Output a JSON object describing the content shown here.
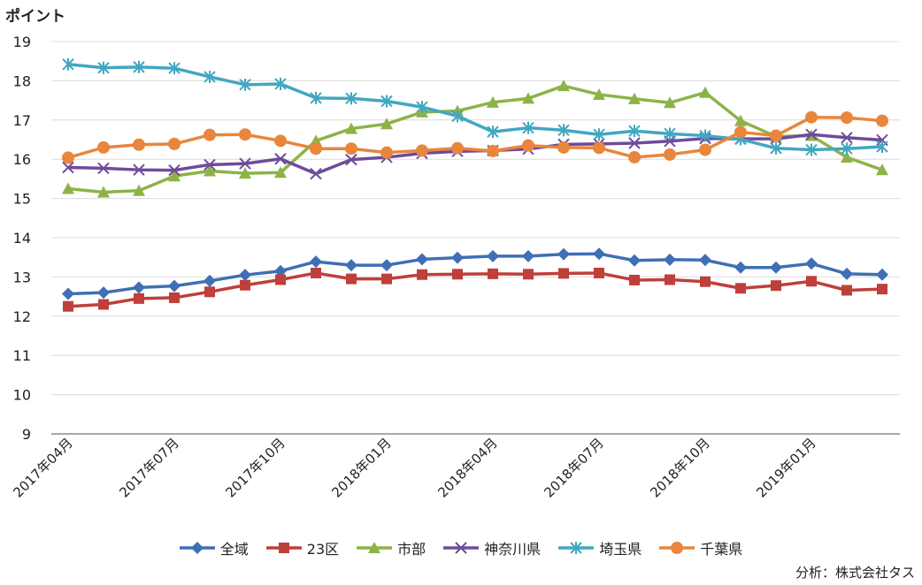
{
  "chart_data": {
    "type": "line",
    "y_unit_label": "ポイント",
    "source": "分析：株式会社タス",
    "ylim": [
      9,
      19
    ],
    "y_ticks": [
      9,
      10,
      11,
      12,
      13,
      14,
      15,
      16,
      17,
      18,
      19
    ],
    "x": [
      "2017年04月",
      "2017年05月",
      "2017年06月",
      "2017年07月",
      "2017年08月",
      "2017年09月",
      "2017年10月",
      "2017年11月",
      "2017年12月",
      "2018年01月",
      "2018年02月",
      "2018年03月",
      "2018年04月",
      "2018年05月",
      "2018年06月",
      "2018年07月",
      "2018年08月",
      "2018年09月",
      "2018年10月",
      "2018年11月",
      "2018年12月",
      "2019年01月",
      "2019年02月",
      "2019年03月"
    ],
    "x_tick_labels": [
      "2017年04月",
      "2017年07月",
      "2017年10月",
      "2018年01月",
      "2018年04月",
      "2018年07月",
      "2018年10月",
      "2019年01月"
    ],
    "x_tick_indices": [
      0,
      3,
      6,
      9,
      12,
      15,
      18,
      21
    ],
    "grid": true,
    "legend_position": "bottom",
    "series": [
      {
        "name": "全域",
        "color": "#3f6fb5",
        "marker": "diamond",
        "values": [
          12.57,
          12.6,
          12.73,
          12.77,
          12.9,
          13.05,
          13.15,
          13.39,
          13.3,
          13.3,
          13.45,
          13.49,
          13.53,
          13.53,
          13.58,
          13.59,
          13.42,
          13.44,
          13.43,
          13.24,
          13.24,
          13.34,
          13.08,
          13.06
        ]
      },
      {
        "name": "23区",
        "color": "#bf3f3b",
        "marker": "square",
        "values": [
          12.25,
          12.3,
          12.45,
          12.47,
          12.62,
          12.79,
          12.93,
          13.1,
          12.95,
          12.95,
          13.06,
          13.07,
          13.08,
          13.07,
          13.09,
          13.1,
          12.92,
          12.93,
          12.88,
          12.71,
          12.78,
          12.89,
          12.66,
          12.69
        ]
      },
      {
        "name": "市部",
        "color": "#8db347",
        "marker": "triangle",
        "values": [
          15.25,
          15.16,
          15.2,
          15.57,
          15.7,
          15.64,
          15.66,
          16.47,
          16.78,
          16.9,
          17.2,
          17.23,
          17.45,
          17.55,
          17.87,
          17.65,
          17.54,
          17.44,
          17.7,
          16.98,
          16.58,
          16.6,
          16.05,
          15.73
        ]
      },
      {
        "name": "神奈川県",
        "color": "#6e4b9c",
        "marker": "x",
        "values": [
          15.79,
          15.77,
          15.73,
          15.72,
          15.86,
          15.89,
          16.01,
          15.63,
          15.99,
          16.05,
          16.15,
          16.2,
          16.22,
          16.26,
          16.38,
          16.39,
          16.41,
          16.46,
          16.53,
          16.52,
          16.52,
          16.63,
          16.55,
          16.49
        ]
      },
      {
        "name": "埼玉県",
        "color": "#41a7c2",
        "marker": "star",
        "values": [
          18.42,
          18.33,
          18.35,
          18.32,
          18.1,
          17.9,
          17.92,
          17.56,
          17.55,
          17.48,
          17.33,
          17.1,
          16.7,
          16.8,
          16.74,
          16.63,
          16.72,
          16.65,
          16.6,
          16.51,
          16.28,
          16.24,
          16.27,
          16.32
        ]
      },
      {
        "name": "千葉県",
        "color": "#e8863d",
        "marker": "circle",
        "values": [
          16.04,
          16.3,
          16.37,
          16.39,
          16.62,
          16.63,
          16.47,
          16.27,
          16.27,
          16.17,
          16.22,
          16.28,
          16.21,
          16.35,
          16.3,
          16.29,
          16.05,
          16.12,
          16.24,
          16.69,
          16.6,
          17.07,
          17.06,
          16.98
        ]
      }
    ]
  }
}
